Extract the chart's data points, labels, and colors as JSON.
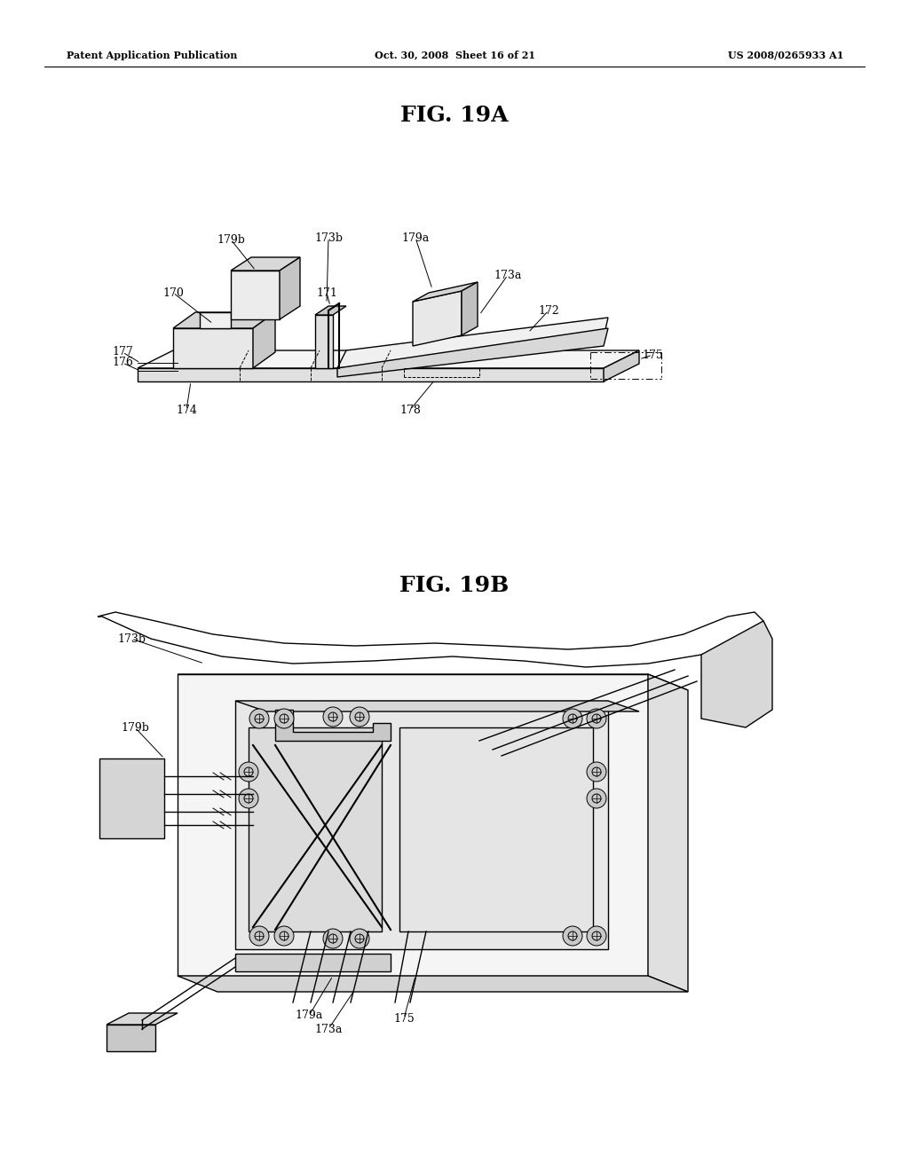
{
  "background_color": "#ffffff",
  "header_left": "Patent Application Publication",
  "header_mid": "Oct. 30, 2008  Sheet 16 of 21",
  "header_right": "US 2008/0265933 A1",
  "fig19a_title": "FIG. 19A",
  "fig19b_title": "FIG. 19B",
  "text_color": "#000000",
  "line_color": "#000000",
  "page_width": 10.24,
  "page_height": 13.2
}
